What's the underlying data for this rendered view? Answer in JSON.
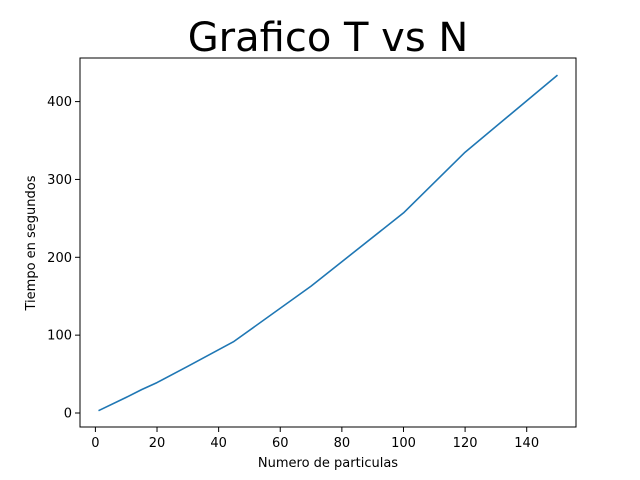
{
  "chart_data": {
    "type": "line",
    "title": "Grafico T vs N",
    "xlabel": "Numero de particulas",
    "ylabel": "Tiempo en segundos",
    "xlim": [
      -5,
      156
    ],
    "ylim": [
      -18,
      456
    ],
    "x_ticks": [
      0,
      20,
      40,
      60,
      80,
      100,
      120,
      140
    ],
    "y_ticks": [
      0,
      100,
      200,
      300,
      400
    ],
    "grid": false,
    "series": [
      {
        "color": "#1f77b4",
        "x": [
          1,
          10,
          15,
          20,
          30,
          45,
          70,
          100,
          120,
          150
        ],
        "y": [
          3,
          20,
          30,
          39,
          60,
          92,
          163,
          257,
          335,
          434
        ]
      }
    ]
  }
}
